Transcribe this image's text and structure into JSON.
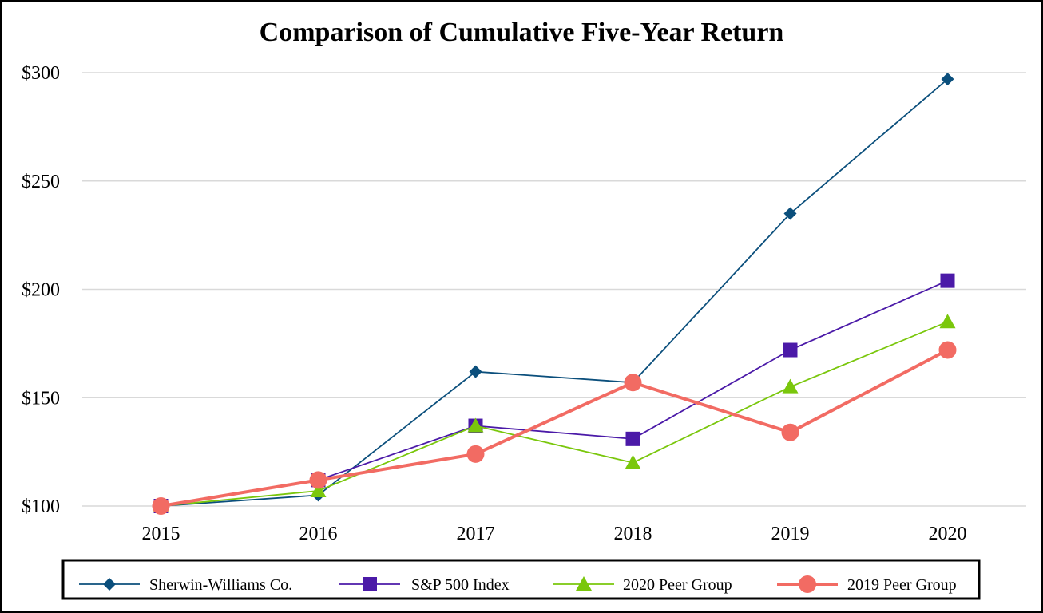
{
  "chart_data": {
    "type": "line",
    "title": "Comparison of Cumulative Five-Year Return",
    "xlabel": "",
    "ylabel": "",
    "categories": [
      "2015",
      "2016",
      "2017",
      "2018",
      "2019",
      "2020"
    ],
    "y_ticks": [
      "$100",
      "$150",
      "$200",
      "$250",
      "$300"
    ],
    "y_tick_values": [
      100,
      150,
      200,
      250,
      300
    ],
    "ylim": [
      100,
      300
    ],
    "grid": "horizontal",
    "legend_position": "bottom",
    "series": [
      {
        "name": "Sherwin-Williams Co.",
        "marker": "diamond",
        "color": "#0b4f7c",
        "line_width": "thin",
        "values": [
          100,
          105,
          162,
          157,
          235,
          297
        ]
      },
      {
        "name": "S&P 500 Index",
        "marker": "square",
        "color": "#4b1aa8",
        "line_width": "thin",
        "values": [
          100,
          112,
          137,
          131,
          172,
          204
        ]
      },
      {
        "name": "2020 Peer Group",
        "marker": "triangle",
        "color": "#7ac70c",
        "line_width": "thin",
        "values": [
          100,
          107,
          137,
          120,
          155,
          185
        ]
      },
      {
        "name": "2019 Peer Group",
        "marker": "circle",
        "color": "#f26b63",
        "line_width": "thick",
        "values": [
          100,
          112,
          124,
          157,
          134,
          172
        ]
      }
    ]
  }
}
